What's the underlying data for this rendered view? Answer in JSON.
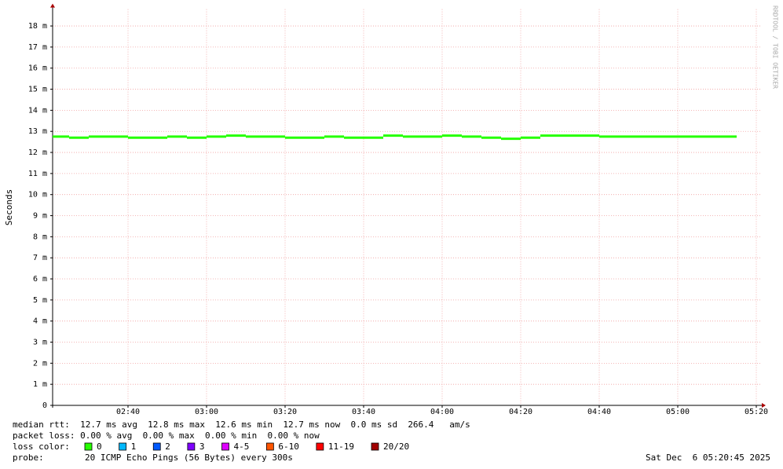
{
  "chart_data": {
    "type": "step",
    "ylabel": "Seconds",
    "watermark": "RRDTOOL / TOBI OETIKER",
    "x": [
      145,
      150,
      155,
      160,
      165,
      170,
      175,
      180,
      185,
      190,
      195,
      200,
      205,
      210,
      215,
      220,
      225,
      230,
      235,
      240,
      245,
      250,
      255,
      260,
      265,
      270,
      275,
      280,
      285,
      290,
      295,
      300,
      305,
      310,
      315
    ],
    "series": [
      {
        "name": "median rtt",
        "color": "#26ff00",
        "values": [
          0.01275,
          0.0127,
          0.01275,
          0.01275,
          0.0127,
          0.0127,
          0.01275,
          0.0127,
          0.01275,
          0.0128,
          0.01275,
          0.01275,
          0.0127,
          0.0127,
          0.01275,
          0.0127,
          0.0127,
          0.0128,
          0.01275,
          0.01275,
          0.0128,
          0.01275,
          0.0127,
          0.01265,
          0.0127,
          0.0128,
          0.0128,
          0.0128,
          0.01275,
          0.01275,
          0.01275,
          0.01275,
          0.01275,
          0.01275,
          0.01275
        ]
      }
    ],
    "xlim": [
      140.8,
      321
    ],
    "xticks": [
      {
        "value": 160,
        "label": "02:40"
      },
      {
        "value": 180,
        "label": "03:00"
      },
      {
        "value": 200,
        "label": "03:20"
      },
      {
        "value": 220,
        "label": "03:40"
      },
      {
        "value": 240,
        "label": "04:00"
      },
      {
        "value": 260,
        "label": "04:20"
      },
      {
        "value": 280,
        "label": "04:40"
      },
      {
        "value": 300,
        "label": "05:00"
      },
      {
        "value": 320,
        "label": "05:20"
      }
    ],
    "ylim": [
      0,
      0.0188
    ],
    "yticks": [
      0,
      {
        "value": 0.001,
        "label": "1 m"
      },
      {
        "value": 0.002,
        "label": "2 m"
      },
      {
        "value": 0.003,
        "label": "3 m"
      },
      {
        "value": 0.004,
        "label": "4 m"
      },
      {
        "value": 0.005,
        "label": "5 m"
      },
      {
        "value": 0.006,
        "label": "6 m"
      },
      {
        "value": 0.007,
        "label": "7 m"
      },
      {
        "value": 0.008,
        "label": "8 m"
      },
      {
        "value": 0.009,
        "label": "9 m"
      },
      {
        "value": 0.01,
        "label": "10 m"
      },
      {
        "value": 0.011,
        "label": "11 m"
      },
      {
        "value": 0.012,
        "label": "12 m"
      },
      {
        "value": 0.013,
        "label": "13 m"
      },
      {
        "value": 0.014,
        "label": "14 m"
      },
      {
        "value": 0.015,
        "label": "15 m"
      },
      {
        "value": 0.016,
        "label": "16 m"
      },
      {
        "value": 0.017,
        "label": "17 m"
      },
      {
        "value": 0.018,
        "label": "18 m"
      }
    ],
    "grid": true,
    "stats": [
      "median rtt:  12.7 ms avg  12.8 ms max  12.6 ms min  12.7 ms now  0.0 ms sd  266.4   am/s",
      "packet loss: 0.00 % avg  0.00 % max  0.00 % min  0.00 % now"
    ],
    "loss_color_label": "loss color:",
    "loss_colors": [
      {
        "label": "0",
        "color": "#26ff00"
      },
      {
        "label": "1",
        "color": "#00b8ff"
      },
      {
        "label": "2",
        "color": "#0059ff"
      },
      {
        "label": "3",
        "color": "#7e00ff"
      },
      {
        "label": "4-5",
        "color": "#dd00ff"
      },
      {
        "label": "6-10",
        "color": "#ff5500"
      },
      {
        "label": "11-19",
        "color": "#ff0000"
      },
      {
        "label": "20/20",
        "color": "#a10000"
      }
    ],
    "probe_label": "probe:",
    "probe": "20 ICMP Echo Pings (56 Bytes) every 300s",
    "date": "Sat Dec  6 05:20:45 2025"
  }
}
